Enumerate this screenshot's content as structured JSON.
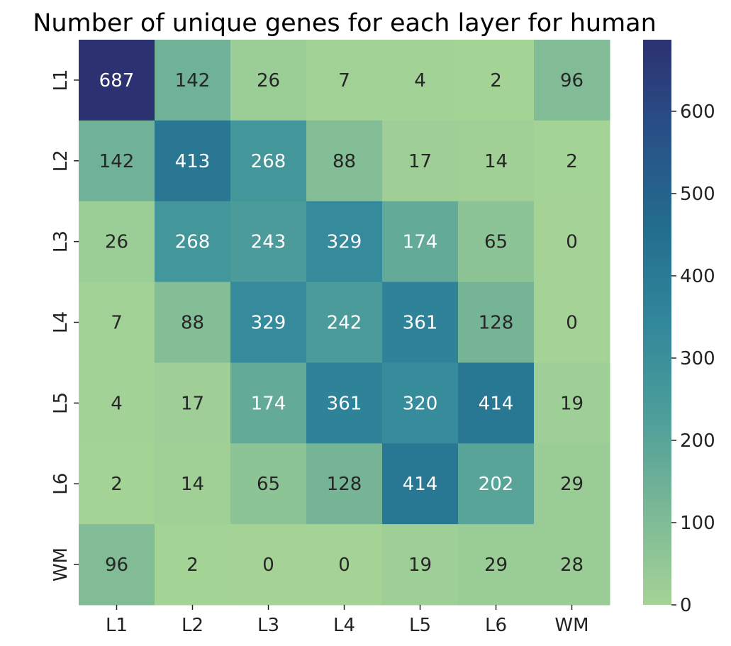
{
  "chart_data": {
    "type": "heatmap",
    "title": "Number of unique genes for each layer for human",
    "x_categories": [
      "L1",
      "L2",
      "L3",
      "L4",
      "L5",
      "L6",
      "WM"
    ],
    "y_categories": [
      "L1",
      "L2",
      "L3",
      "L4",
      "L5",
      "L6",
      "WM"
    ],
    "values": [
      [
        687,
        142,
        26,
        7,
        4,
        2,
        96
      ],
      [
        142,
        413,
        268,
        88,
        17,
        14,
        2
      ],
      [
        26,
        268,
        243,
        329,
        174,
        65,
        0
      ],
      [
        7,
        88,
        329,
        242,
        361,
        128,
        0
      ],
      [
        4,
        17,
        174,
        361,
        320,
        414,
        19
      ],
      [
        2,
        14,
        65,
        128,
        414,
        202,
        29
      ],
      [
        96,
        2,
        0,
        0,
        19,
        29,
        28
      ]
    ],
    "colorbar": {
      "min": 0,
      "max": 687,
      "ticks": [
        0,
        100,
        200,
        300,
        400,
        500,
        600
      ],
      "colormap": "crest",
      "color_stops": [
        "#a5d396",
        "#7ab896",
        "#4d9e9a",
        "#31879b",
        "#236d8e",
        "#285187",
        "#2c3172"
      ]
    },
    "annotation_colors": {
      "light": "#ffffff",
      "dark": "#262626"
    },
    "xlabel": "",
    "ylabel": ""
  }
}
